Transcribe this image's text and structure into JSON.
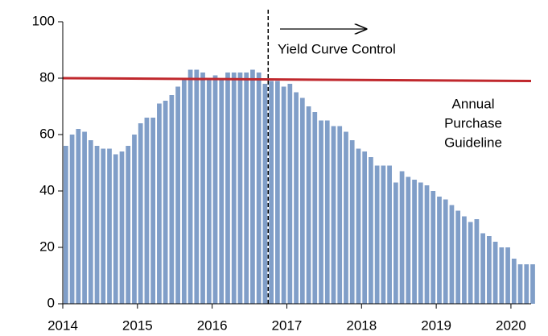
{
  "chart_data": {
    "type": "bar",
    "xlim": [
      2014,
      2020.27
    ],
    "xticks": [
      2014,
      2015,
      2016,
      2017,
      2018,
      2019,
      2020
    ],
    "ylim": [
      0,
      100
    ],
    "yticks": [
      0,
      20,
      40,
      60,
      80,
      100
    ],
    "series": [
      {
        "type": "bar",
        "color": "#809ec8",
        "x": [
          2014,
          2014.0833,
          2014.1667,
          2014.25,
          2014.3333,
          2014.4167,
          2014.5,
          2014.5833,
          2014.6667,
          2014.75,
          2014.8333,
          2014.9167,
          2015,
          2015.0833,
          2015.1667,
          2015.25,
          2015.3333,
          2015.4167,
          2015.5,
          2015.5833,
          2015.6667,
          2015.75,
          2015.8333,
          2015.9167,
          2016,
          2016.0833,
          2016.1667,
          2016.25,
          2016.3333,
          2016.4167,
          2016.5,
          2016.5833,
          2016.6667,
          2016.75,
          2016.8333,
          2016.9167,
          2017,
          2017.0833,
          2017.1667,
          2017.25,
          2017.3333,
          2017.4167,
          2017.5,
          2017.5833,
          2017.6667,
          2017.75,
          2017.8333,
          2017.9167,
          2018,
          2018.0833,
          2018.1667,
          2018.25,
          2018.3333,
          2018.4167,
          2018.5,
          2018.5833,
          2018.6667,
          2018.75,
          2018.8333,
          2018.9167,
          2019,
          2019.0833,
          2019.1667,
          2019.25,
          2019.3333,
          2019.4167,
          2019.5,
          2019.5833,
          2019.6667,
          2019.75,
          2019.8333,
          2019.9167,
          2020,
          2020.0833,
          2020.1667,
          2020.25
        ],
        "values": [
          56,
          60,
          62,
          61,
          58,
          56,
          55,
          55,
          53,
          54,
          56,
          60,
          64,
          66,
          66,
          71,
          72,
          74,
          77,
          80,
          83,
          83,
          82,
          80,
          81,
          80,
          82,
          82,
          82,
          82,
          83,
          82,
          78,
          79,
          79,
          77,
          78,
          75,
          73,
          70,
          68,
          65,
          65,
          63,
          63,
          61,
          58,
          55,
          54,
          52,
          49,
          49,
          49,
          43,
          47,
          45,
          44,
          43,
          42,
          40,
          38,
          37,
          35,
          33,
          31,
          29,
          30,
          25,
          24,
          22,
          20,
          20,
          16,
          14,
          14,
          14
        ]
      },
      {
        "type": "line",
        "color": "#c0282d",
        "x": [
          2014,
          2020.27
        ],
        "values": [
          80,
          79
        ]
      }
    ],
    "vline_x": 2016.75,
    "annotations": {
      "ycc": "Yield Curve Control",
      "guideline": [
        "Annual",
        "Purchase",
        "Guideline"
      ]
    }
  }
}
